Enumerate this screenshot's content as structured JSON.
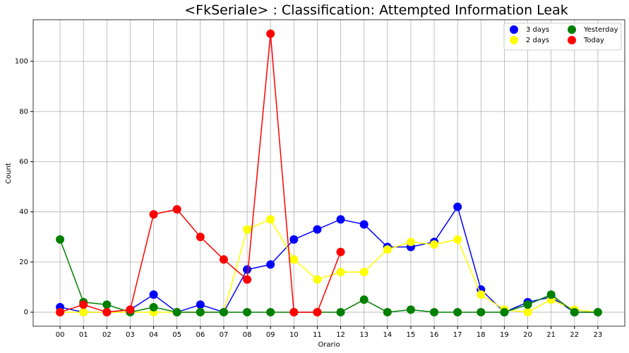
{
  "chart_data": {
    "type": "line",
    "title": "<FkSeriale>  :  Classification: Attempted Information Leak",
    "x_label": "Orario",
    "y_label": "Count",
    "categories": [
      "00",
      "01",
      "02",
      "03",
      "04",
      "05",
      "06",
      "07",
      "08",
      "09",
      "10",
      "11",
      "12",
      "13",
      "14",
      "15",
      "16",
      "17",
      "18",
      "19",
      "20",
      "21",
      "22",
      "23"
    ],
    "series": [
      {
        "name": "3 days",
        "color": "#0000ff",
        "values": [
          2,
          0,
          0,
          1,
          7,
          0,
          3,
          0,
          17,
          19,
          29,
          33,
          37,
          35,
          26,
          26,
          28,
          42,
          9,
          0,
          4,
          6,
          0,
          0
        ]
      },
      {
        "name": "2 days",
        "color": "#ffff00",
        "values": [
          0,
          0,
          0,
          0,
          0,
          0,
          0,
          0,
          33,
          37,
          21,
          13,
          16,
          16,
          25,
          28,
          27,
          29,
          7,
          1,
          0,
          5,
          1,
          0
        ]
      },
      {
        "name": "Yesterday",
        "color": "#008000",
        "values": [
          29,
          4,
          3,
          0,
          2,
          0,
          0,
          0,
          0,
          0,
          0,
          0,
          0,
          5,
          0,
          1,
          0,
          0,
          0,
          0,
          3,
          7,
          0,
          0
        ]
      },
      {
        "name": "Today",
        "color": "#ff0000",
        "values": [
          0,
          3,
          0,
          1,
          39,
          41,
          30,
          21,
          13,
          111,
          0,
          0,
          24,
          null,
          null,
          null,
          null,
          null,
          null,
          null,
          null,
          null,
          null,
          null
        ]
      }
    ],
    "ylim": [
      -5.6,
      116.6
    ],
    "yticks": [
      0,
      20,
      40,
      60,
      80,
      100
    ],
    "grid": true,
    "legend": "upper right",
    "legend_columns": 2
  }
}
